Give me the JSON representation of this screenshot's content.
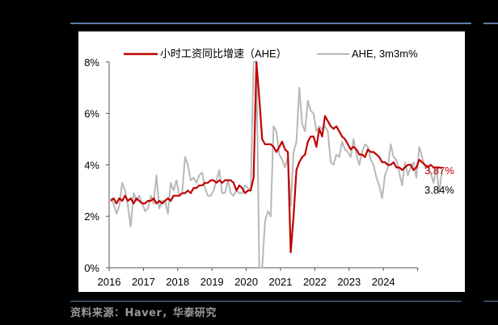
{
  "source_text": "资料来源：Haver，华泰研究",
  "chart_data": {
    "type": "line",
    "title": "",
    "xlabel": "",
    "ylabel": "",
    "ylim": [
      0,
      8
    ],
    "y_ticks": [
      "0%",
      "2%",
      "4%",
      "6%",
      "8%"
    ],
    "x_ticks": [
      "2016",
      "2017",
      "2018",
      "2019",
      "2020",
      "2021",
      "2022",
      "2023",
      "2024"
    ],
    "x_range": [
      "2016-01",
      "2024-12"
    ],
    "grid": false,
    "legend_position": "top",
    "legend": [
      "小时工资同比增速（AHE）",
      "AHE, 3m3m%"
    ],
    "annotations": [
      {
        "text": "3.87%",
        "color": "#c00000",
        "series": "小时工资同比增速（AHE）"
      },
      {
        "text": "3.84%",
        "color": "#000000",
        "series": "AHE, 3m3m%"
      }
    ],
    "frequency": "monthly",
    "start": "2016-01",
    "series": [
      {
        "name": "小时工资同比增速（AHE）",
        "color": "#c00000",
        "values": [
          2.6,
          2.7,
          2.5,
          2.7,
          2.6,
          2.8,
          2.6,
          2.7,
          2.5,
          2.7,
          2.6,
          2.5,
          2.5,
          2.6,
          2.6,
          2.7,
          2.5,
          2.6,
          2.5,
          2.6,
          2.7,
          2.6,
          2.8,
          2.8,
          2.8,
          2.9,
          2.9,
          3.0,
          2.9,
          3.1,
          3.1,
          3.2,
          3.2,
          3.3,
          3.3,
          3.4,
          3.4,
          3.3,
          3.4,
          3.3,
          3.4,
          3.4,
          3.4,
          3.3,
          3.0,
          3.2,
          3.1,
          2.9,
          3.0,
          3.0,
          3.5,
          8.0,
          6.6,
          5.0,
          4.8,
          4.8,
          4.8,
          4.7,
          4.5,
          4.7,
          4.9,
          4.6,
          4.5,
          0.6,
          2.0,
          3.8,
          4.1,
          4.3,
          4.4,
          4.9,
          5.1,
          5.1,
          4.7,
          5.4,
          5.1,
          5.9,
          5.7,
          5.5,
          5.4,
          5.5,
          5.3,
          5.1,
          5.0,
          4.8,
          4.6,
          4.7,
          4.6,
          4.4,
          4.4,
          4.3,
          4.6,
          4.5,
          4.5,
          4.4,
          4.3,
          4.1,
          4.1,
          4.0,
          4.0,
          4.1,
          3.9,
          3.9,
          3.8,
          3.9,
          4.0,
          4.0,
          3.8,
          3.9,
          4.2,
          4.1,
          4.0,
          3.9,
          4.0,
          3.9,
          3.9,
          3.9,
          3.87
        ]
      },
      {
        "name": "AHE, 3m3m%",
        "color": "#b8b8b8",
        "values": [
          2.7,
          2.5,
          2.1,
          2.4,
          3.3,
          3.0,
          2.4,
          1.6,
          2.9,
          2.6,
          2.8,
          2.5,
          2.2,
          2.3,
          2.8,
          2.5,
          3.6,
          2.3,
          2.6,
          2.6,
          2.1,
          3.3,
          3.0,
          3.4,
          2.8,
          2.9,
          4.3,
          4.0,
          3.4,
          3.5,
          3.3,
          3.6,
          3.7,
          3.1,
          2.8,
          2.8,
          3.0,
          3.4,
          3.8,
          2.9,
          2.9,
          3.4,
          2.9,
          2.8,
          3.0,
          2.9,
          2.9,
          3.2,
          3.1,
          3.0,
          8.0,
          8.0,
          0.0,
          0.0,
          1.8,
          2.2,
          2.0,
          5.5,
          5.3,
          4.4,
          4.2,
          3.9,
          4.3,
          2.4,
          4.5,
          4.9,
          7.0,
          5.6,
          5.3,
          6.5,
          6.1,
          6.0,
          5.3,
          5.5,
          5.4,
          5.5,
          5.3,
          4.1,
          4.0,
          4.4,
          4.3,
          4.9,
          4.6,
          4.5,
          4.3,
          5.0,
          4.4,
          4.0,
          4.5,
          4.8,
          4.7,
          4.2,
          4.0,
          3.5,
          3.2,
          2.7,
          3.6,
          3.9,
          4.8,
          4.3,
          4.2,
          3.7,
          3.2,
          4.1,
          3.6,
          3.9,
          4.1,
          3.5,
          4.7,
          4.3,
          3.9,
          4.0,
          3.7,
          3.3,
          3.9,
          2.9,
          3.84
        ]
      }
    ]
  }
}
